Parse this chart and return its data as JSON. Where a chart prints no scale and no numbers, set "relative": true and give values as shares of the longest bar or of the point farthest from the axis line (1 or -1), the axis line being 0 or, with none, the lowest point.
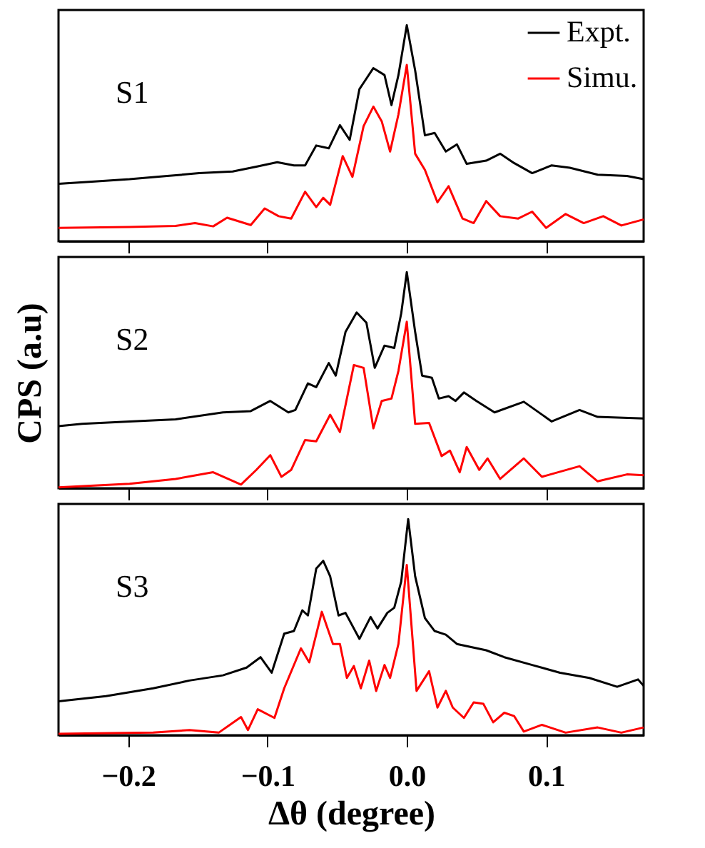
{
  "chart_data": [
    {
      "type": "line",
      "relative": true,
      "xlim": [
        -0.25,
        0.17
      ],
      "xticks": [
        -0.2,
        -0.1,
        0,
        0.1
      ],
      "tick_labels": false,
      "legend": "top right",
      "annotations": [
        "S1"
      ],
      "series": [
        {
          "name": "Expt.",
          "color": "#000000",
          "x": [
            -0.25,
            -0.226,
            -0.199,
            -0.172,
            -0.149,
            -0.125,
            -0.108,
            -0.093,
            -0.081,
            -0.073,
            -0.065,
            -0.056,
            -0.048,
            -0.041,
            -0.034,
            -0.024,
            -0.016,
            -0.011,
            -0.006,
            0.0,
            0.006,
            0.013,
            0.02,
            0.028,
            0.036,
            0.043,
            0.057,
            0.067,
            0.077,
            0.09,
            0.104,
            0.117,
            0.137,
            0.158,
            0.17
          ],
          "values": [
            0.266,
            0.276,
            0.287,
            0.302,
            0.315,
            0.323,
            0.345,
            0.366,
            0.351,
            0.351,
            0.443,
            0.43,
            0.537,
            0.469,
            0.704,
            0.801,
            0.769,
            0.63,
            0.769,
            1,
            0.79,
            0.49,
            0.501,
            0.415,
            0.448,
            0.358,
            0.373,
            0.405,
            0.362,
            0.315,
            0.351,
            0.34,
            0.308,
            0.302,
            0.287
          ]
        },
        {
          "name": "Simu.",
          "color": "#ff0000",
          "x": [
            -0.25,
            -0.199,
            -0.166,
            -0.152,
            -0.139,
            -0.129,
            -0.112,
            -0.102,
            -0.092,
            -0.083,
            -0.073,
            -0.065,
            -0.06,
            -0.055,
            -0.046,
            -0.039,
            -0.031,
            -0.024,
            -0.018,
            -0.012,
            -0.006,
            0.0,
            0.006,
            0.013,
            0.022,
            0.03,
            0.04,
            0.048,
            0.057,
            0.067,
            0.08,
            0.09,
            0.1,
            0.114,
            0.127,
            0.141,
            0.154,
            0.17
          ],
          "values": [
            0.062,
            0.066,
            0.071,
            0.084,
            0.069,
            0.109,
            0.075,
            0.152,
            0.116,
            0.105,
            0.229,
            0.158,
            0.201,
            0.169,
            0.394,
            0.298,
            0.533,
            0.623,
            0.555,
            0.415,
            0.587,
            0.816,
            0.405,
            0.33,
            0.18,
            0.255,
            0.105,
            0.084,
            0.186,
            0.116,
            0.105,
            0.137,
            0.062,
            0.126,
            0.084,
            0.116,
            0.073,
            0.101
          ]
        }
      ]
    },
    {
      "type": "line",
      "relative": true,
      "xlim": [
        -0.25,
        0.17
      ],
      "xticks": [
        -0.2,
        -0.1,
        0,
        0.1
      ],
      "tick_labels": false,
      "ylabel": "CPS (a.u)",
      "annotations": [
        "S2"
      ],
      "series": [
        {
          "color": "#000000",
          "x": [
            -0.25,
            -0.233,
            -0.199,
            -0.166,
            -0.132,
            -0.112,
            -0.098,
            -0.085,
            -0.08,
            -0.071,
            -0.065,
            -0.056,
            -0.051,
            -0.044,
            -0.036,
            -0.029,
            -0.023,
            -0.016,
            -0.009,
            -0.004,
            0.0,
            0.006,
            0.011,
            0.018,
            0.023,
            0.03,
            0.035,
            0.041,
            0.05,
            0.063,
            0.084,
            0.104,
            0.124,
            0.137,
            0.17
          ],
          "values": [
            0.287,
            0.298,
            0.309,
            0.319,
            0.351,
            0.357,
            0.404,
            0.351,
            0.362,
            0.485,
            0.468,
            0.579,
            0.521,
            0.723,
            0.813,
            0.766,
            0.557,
            0.66,
            0.649,
            0.809,
            1,
            0.723,
            0.521,
            0.511,
            0.415,
            0.426,
            0.404,
            0.443,
            0.404,
            0.351,
            0.4,
            0.309,
            0.362,
            0.33,
            0.323
          ]
        },
        {
          "color": "#ff0000",
          "x": [
            -0.25,
            -0.199,
            -0.166,
            -0.139,
            -0.119,
            -0.108,
            -0.098,
            -0.09,
            -0.083,
            -0.073,
            -0.065,
            -0.055,
            -0.048,
            -0.038,
            -0.031,
            -0.024,
            -0.018,
            -0.011,
            -0.006,
            0.0,
            0.006,
            0.016,
            0.025,
            0.031,
            0.038,
            0.043,
            0.052,
            0.058,
            0.067,
            0.084,
            0.097,
            0.124,
            0.137,
            0.158,
            0.17
          ],
          "values": [
            0.004,
            0.021,
            0.043,
            0.074,
            0.017,
            0.085,
            0.153,
            0.053,
            0.085,
            0.223,
            0.217,
            0.34,
            0.26,
            0.57,
            0.557,
            0.277,
            0.404,
            0.415,
            0.543,
            0.77,
            0.298,
            0.302,
            0.149,
            0.174,
            0.074,
            0.191,
            0.085,
            0.138,
            0.043,
            0.138,
            0.053,
            0.102,
            0.032,
            0.064,
            0.06
          ]
        }
      ]
    },
    {
      "type": "line",
      "relative": true,
      "xlim": [
        -0.25,
        0.17
      ],
      "xticks": [
        -0.2,
        -0.1,
        {
          "value": 0,
          "label": "0.0"
        },
        0.1
      ],
      "tick_labels": "x",
      "xlabel": "Δθ (degree)",
      "annotations": [
        "S3"
      ],
      "series": [
        {
          "color": "#000000",
          "x": [
            -0.25,
            -0.216,
            -0.182,
            -0.156,
            -0.132,
            -0.115,
            -0.105,
            -0.097,
            -0.088,
            -0.081,
            -0.075,
            -0.071,
            -0.065,
            -0.06,
            -0.055,
            -0.049,
            -0.044,
            -0.034,
            -0.026,
            -0.021,
            -0.014,
            -0.009,
            -0.004,
            0.001,
            0.006,
            0.013,
            0.02,
            0.028,
            0.036,
            0.057,
            0.07,
            0.09,
            0.11,
            0.131,
            0.151,
            0.166,
            0.17
          ],
          "values": [
            0.157,
            0.181,
            0.217,
            0.253,
            0.277,
            0.313,
            0.361,
            0.289,
            0.47,
            0.482,
            0.578,
            0.554,
            0.771,
            0.807,
            0.735,
            0.554,
            0.566,
            0.446,
            0.547,
            0.494,
            0.566,
            0.59,
            0.711,
            1,
            0.735,
            0.542,
            0.482,
            0.465,
            0.422,
            0.393,
            0.361,
            0.325,
            0.289,
            0.265,
            0.224,
            0.258,
            0.229
          ]
        },
        {
          "color": "#ff0000",
          "x": [
            -0.25,
            -0.182,
            -0.156,
            -0.135,
            -0.119,
            -0.114,
            -0.107,
            -0.095,
            -0.088,
            -0.076,
            -0.07,
            -0.061,
            -0.053,
            -0.048,
            -0.043,
            -0.038,
            -0.033,
            -0.027,
            -0.022,
            -0.016,
            -0.012,
            -0.006,
            0.0,
            0.007,
            0.016,
            0.022,
            0.028,
            0.033,
            0.041,
            0.048,
            0.055,
            0.062,
            0.07,
            0.077,
            0.084,
            0.097,
            0.114,
            0.137,
            0.154,
            0.17
          ],
          "values": [
            0.007,
            0.012,
            0.024,
            0.012,
            0.084,
            0.024,
            0.12,
            0.08,
            0.217,
            0.402,
            0.337,
            0.571,
            0.422,
            0.422,
            0.265,
            0.32,
            0.217,
            0.345,
            0.205,
            0.325,
            0.265,
            0.422,
            0.788,
            0.205,
            0.296,
            0.128,
            0.205,
            0.128,
            0.08,
            0.152,
            0.145,
            0.06,
            0.104,
            0.089,
            0.017,
            0.048,
            0.012,
            0.036,
            0.012,
            0.036
          ]
        }
      ]
    }
  ]
}
